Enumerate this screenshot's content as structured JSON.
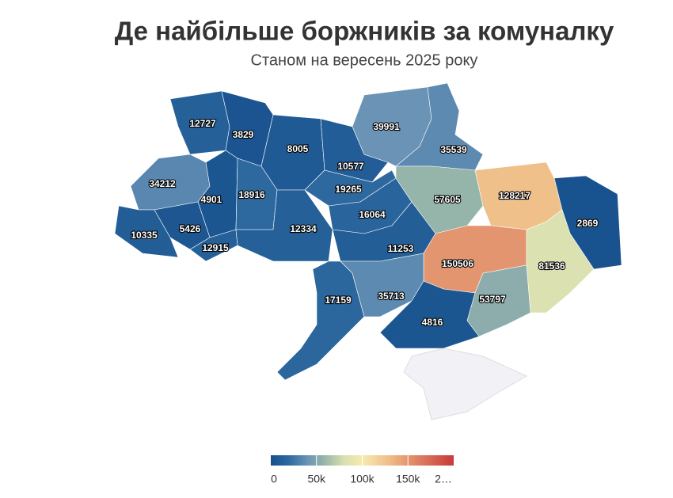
{
  "title": "Де найбільше боржників за комуналку",
  "subtitle": "Станом на вересень 2025 року",
  "map": {
    "type": "choropleth",
    "values": [
      12727,
      3829,
      8005,
      10577,
      39991,
      35539,
      34212,
      4901,
      18916,
      19265,
      16064,
      57605,
      128217,
      2869,
      10335,
      5426,
      12915,
      12334,
      11253,
      150506,
      81536,
      17159,
      35713,
      53797,
      4816
    ],
    "colorlim": [
      0,
      200000
    ],
    "colorscale": [
      [
        0,
        "#164f8c"
      ],
      [
        0.1,
        "#2e6aa0"
      ],
      [
        0.2,
        "#6a93b5"
      ],
      [
        0.3,
        "#9bb8a8"
      ],
      [
        0.4,
        "#d9e0b0"
      ],
      [
        0.5,
        "#f5ebb0"
      ],
      [
        0.65,
        "#f0bd88"
      ],
      [
        0.78,
        "#e08a68"
      ],
      [
        1,
        "#c8393a"
      ]
    ],
    "ticks": [
      0,
      {
        "value": 50000,
        "label": "50k"
      },
      {
        "value": 100000,
        "label": "100k"
      },
      {
        "value": 150000,
        "label": "150k"
      },
      {
        "value": 200000,
        "label": "2…"
      }
    ]
  }
}
